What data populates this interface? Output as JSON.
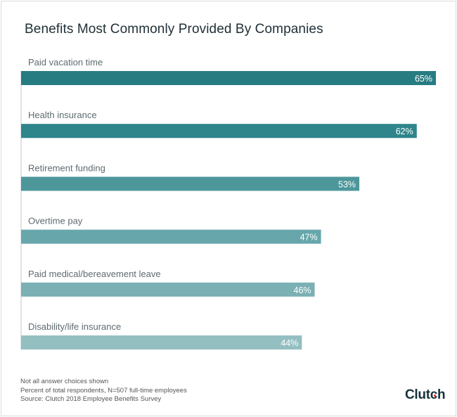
{
  "chart_data": {
    "type": "bar",
    "orientation": "horizontal",
    "title": "Benefits Most Commonly Provided By Companies",
    "categories": [
      "Paid vacation time",
      "Health insurance",
      "Retirement funding",
      "Overtime pay",
      "Paid medical/bereavement leave",
      "Disability/life insurance"
    ],
    "values": [
      65,
      62,
      53,
      47,
      46,
      44
    ],
    "value_labels": [
      "65%",
      "62%",
      "53%",
      "47%",
      "46%",
      "44%"
    ],
    "unit": "%",
    "xlim": [
      0,
      65
    ],
    "grid": false,
    "colors": [
      "#277c82",
      "#2e858a",
      "#4d979b",
      "#67a7ab",
      "#7bb0b4",
      "#94bfc1"
    ]
  },
  "footnotes": [
    "Not all answer choices shown",
    "Percent of total respondents, N=507 full-time employees",
    "Source: Clutch 2018 Employee Benefits Survey"
  ],
  "logo": {
    "text": "Clutch",
    "accent": "#e62415"
  }
}
